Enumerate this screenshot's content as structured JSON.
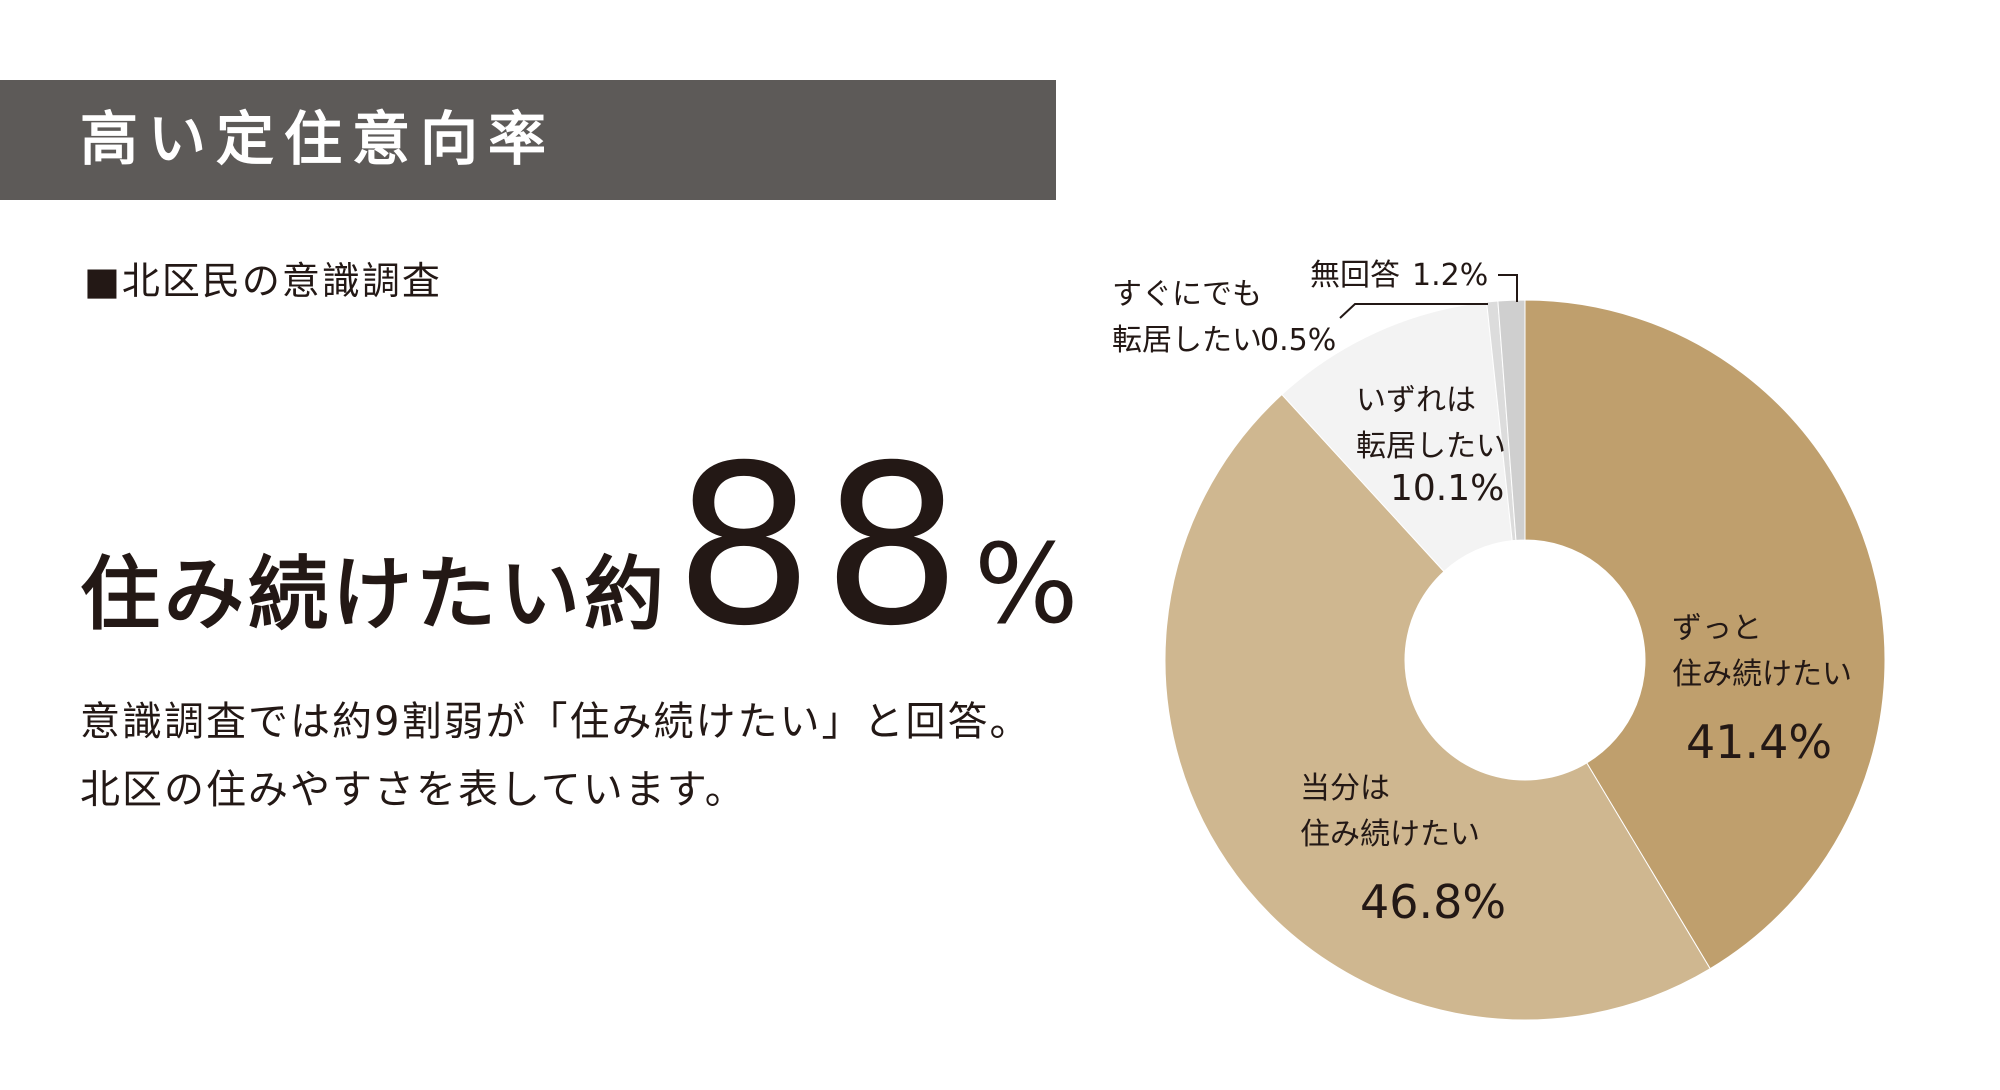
{
  "header": {
    "title": "高い定住意向率"
  },
  "survey_label": "■北区民の意識調査",
  "headline": {
    "prefix": "住み続けたい約",
    "number": "88",
    "unit": "%"
  },
  "body": {
    "line1": "意識調査では約9割弱が「住み続けたい」と回答。",
    "line2": "北区の住みやすさを表しています。"
  },
  "colors": {
    "header_bg": "#5d5a58",
    "slice_always": "#bf9f6d",
    "slice_for_now": "#cfb790",
    "slice_eventually": "#f3f3f3",
    "slice_soon": "#dcdcdc",
    "slice_no_answer": "#cfcfcf"
  },
  "chart_data": {
    "type": "pie",
    "donut": true,
    "start": "12 o'clock, clockwise",
    "slices": [
      {
        "label_lines": [
          "ずっと",
          "住み続けたい"
        ],
        "value": 41.4,
        "value_label": "41.4%",
        "color": "#bf9f6d"
      },
      {
        "label_lines": [
          "当分は",
          "住み続けたい"
        ],
        "value": 46.8,
        "value_label": "46.8%",
        "color": "#cfb790"
      },
      {
        "label_lines": [
          "いずれは",
          "転居したい"
        ],
        "value": 10.1,
        "value_label": "10.1%",
        "color": "#f3f3f3"
      },
      {
        "label_lines": [
          "すぐにでも",
          "転居したい"
        ],
        "value": 0.5,
        "value_label": "0.5%",
        "color": "#dcdcdc"
      },
      {
        "label_lines": [
          "無回答"
        ],
        "value": 1.2,
        "value_label": "1.2%",
        "color": "#cfcfcf"
      }
    ]
  }
}
